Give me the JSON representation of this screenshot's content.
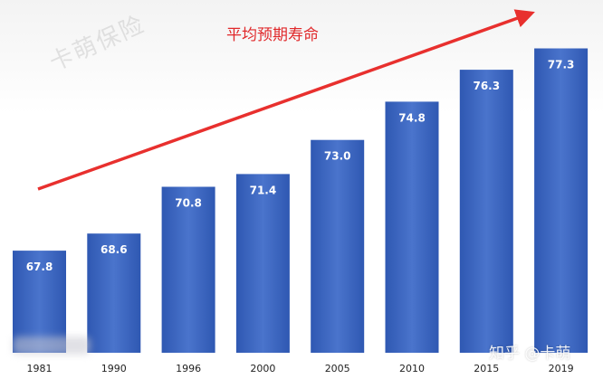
{
  "chart_data": {
    "type": "bar",
    "title": "平均预期寿命",
    "categories": [
      "1981",
      "1990",
      "1996",
      "2000",
      "2005",
      "2010",
      "2015",
      "2019"
    ],
    "values": [
      67.8,
      68.6,
      70.8,
      71.4,
      73.0,
      74.8,
      76.3,
      77.3
    ],
    "value_labels": [
      "67.8",
      "68.6",
      "70.8",
      "71.4",
      "73.0",
      "74.8",
      "76.3",
      "77.3"
    ],
    "xlabel": "",
    "ylabel": "",
    "ylim": [
      63,
      78.3
    ],
    "grid": false,
    "legend": "none",
    "bar_color": "#3a64bd",
    "trend_arrow_color": "#e8302e"
  },
  "watermarks": {
    "top_left": "卡萌保险",
    "bottom_right": "知乎 @卡萌"
  }
}
